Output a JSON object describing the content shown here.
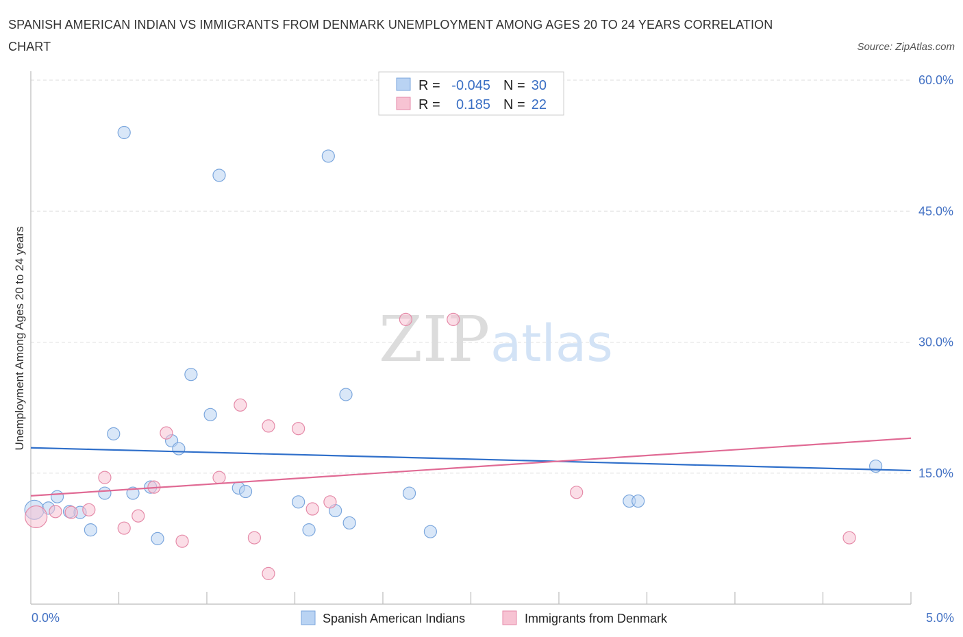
{
  "title": "SPANISH AMERICAN INDIAN VS IMMIGRANTS FROM DENMARK UNEMPLOYMENT AMONG AGES 20 TO 24 YEARS CORRELATION CHART",
  "source": "Source: ZipAtlas.com",
  "watermark": {
    "zip": "ZIP",
    "atlas": "atlas"
  },
  "stats": [
    {
      "r_label": "R =",
      "r": "-0.045",
      "n_label": "N =",
      "n": "30"
    },
    {
      "r_label": "R =",
      "r": "0.185",
      "n_label": "N =",
      "n": "22"
    }
  ],
  "colors": {
    "blue_fill": "#b9d3f3",
    "blue_stroke": "#7aa6dd",
    "blue_line": "#2f6fca",
    "pink_fill": "#f7c3d3",
    "pink_stroke": "#e58aa8",
    "pink_line": "#e06a94",
    "grid": "#dddddd",
    "axis_text": "#4472c4"
  },
  "chart_data": {
    "type": "scatter",
    "title": "SPANISH AMERICAN INDIAN VS IMMIGRANTS FROM DENMARK UNEMPLOYMENT AMONG AGES 20 TO 24 YEARS CORRELATION CHART",
    "xlabel": "",
    "ylabel": "Unemployment Among Ages 20 to 24 years",
    "xlim": [
      0,
      5
    ],
    "ylim": [
      0,
      60
    ],
    "x_tick_labels": [
      "0.0%",
      "5.0%"
    ],
    "y_ticks": [
      15,
      30,
      45,
      60
    ],
    "y_tick_labels": [
      "15.0%",
      "30.0%",
      "45.0%",
      "60.0%"
    ],
    "legend_position": "bottom-center",
    "series": [
      {
        "name": "Spanish American Indians",
        "color": "#b9d3f3",
        "trend": [
          [
            0,
            17.9
          ],
          [
            5,
            15.3
          ]
        ],
        "points": [
          [
            0.02,
            10.8,
            14
          ],
          [
            0.1,
            11.0,
            9
          ],
          [
            0.15,
            12.3,
            9
          ],
          [
            0.22,
            10.6,
            9
          ],
          [
            0.28,
            10.5,
            9
          ],
          [
            0.34,
            8.5,
            9
          ],
          [
            0.42,
            12.7,
            9
          ],
          [
            0.47,
            19.5,
            9
          ],
          [
            0.53,
            54.0,
            9
          ],
          [
            0.58,
            12.7,
            9
          ],
          [
            0.68,
            13.4,
            9
          ],
          [
            0.72,
            7.5,
            9
          ],
          [
            0.8,
            18.7,
            9
          ],
          [
            0.84,
            17.8,
            9
          ],
          [
            0.91,
            26.3,
            9
          ],
          [
            1.02,
            21.7,
            9
          ],
          [
            1.07,
            49.1,
            9
          ],
          [
            1.18,
            13.3,
            9
          ],
          [
            1.22,
            12.9,
            9
          ],
          [
            1.52,
            11.7,
            9
          ],
          [
            1.58,
            8.5,
            9
          ],
          [
            1.69,
            51.3,
            9
          ],
          [
            1.73,
            10.7,
            9
          ],
          [
            1.79,
            24.0,
            9
          ],
          [
            1.81,
            9.3,
            9
          ],
          [
            2.15,
            12.7,
            9
          ],
          [
            2.27,
            8.3,
            9
          ],
          [
            3.4,
            11.8,
            9
          ],
          [
            3.45,
            11.8,
            9
          ],
          [
            4.8,
            15.8,
            9
          ]
        ]
      },
      {
        "name": "Immigrants from Denmark",
        "color": "#f7c3d3",
        "trend": [
          [
            0,
            12.4
          ],
          [
            5,
            19.0
          ]
        ],
        "points": [
          [
            0.03,
            10.0,
            16
          ],
          [
            0.14,
            10.6,
            9
          ],
          [
            0.23,
            10.5,
            9
          ],
          [
            0.33,
            10.8,
            9
          ],
          [
            0.42,
            14.5,
            9
          ],
          [
            0.53,
            8.7,
            9
          ],
          [
            0.61,
            10.1,
            9
          ],
          [
            0.7,
            13.4,
            9
          ],
          [
            0.77,
            19.6,
            9
          ],
          [
            0.86,
            7.2,
            9
          ],
          [
            1.07,
            14.5,
            9
          ],
          [
            1.19,
            22.8,
            9
          ],
          [
            1.27,
            7.6,
            9
          ],
          [
            1.35,
            3.5,
            9
          ],
          [
            1.35,
            20.4,
            9
          ],
          [
            1.52,
            20.1,
            9
          ],
          [
            1.6,
            10.9,
            9
          ],
          [
            1.7,
            11.7,
            9
          ],
          [
            2.13,
            32.6,
            9
          ],
          [
            2.4,
            32.6,
            9
          ],
          [
            3.1,
            12.8,
            9
          ],
          [
            4.65,
            7.6,
            9
          ]
        ]
      }
    ]
  }
}
